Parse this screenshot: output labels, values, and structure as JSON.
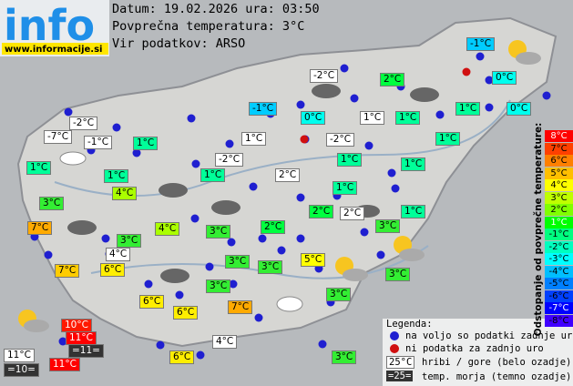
{
  "logo": {
    "text": "info",
    "url": "www.informacije.si"
  },
  "header": {
    "date": "Datum: 19.02.2026 ura: 03:50",
    "average": "Povprečna temperatura: 3°C",
    "source": "Vir podatkov: ARSO"
  },
  "stations": [
    {
      "label": "-1°C",
      "color": "#00ccff"
    },
    {
      "label": "2°C",
      "color": "#00ff40"
    },
    {
      "label": "0°C",
      "color": "#00ffee"
    },
    {
      "label": "-2°C",
      "color": "#ffffff"
    },
    {
      "label": "-1°C",
      "color": "#00ccff"
    },
    {
      "label": "0°C",
      "color": "#00ffee"
    },
    {
      "label": "1°C",
      "color": "#ffffff"
    },
    {
      "label": "1°C",
      "color": "#00ff99"
    },
    {
      "label": "1°C",
      "color": "#00ff99"
    },
    {
      "label": "0°C",
      "color": "#00ffee"
    },
    {
      "label": "-2°C",
      "color": "#ffffff"
    },
    {
      "label": "-7°C",
      "color": "#ffffff"
    },
    {
      "label": "-1°C",
      "color": "#ffffff"
    },
    {
      "label": "1°C",
      "color": "#00ff99"
    },
    {
      "label": "1°C",
      "color": "#ffffff"
    },
    {
      "label": "-2°C",
      "color": "#ffffff"
    },
    {
      "label": "1°C",
      "color": "#00ff99"
    },
    {
      "label": "1°C",
      "color": "#00ff99"
    },
    {
      "label": "1°C",
      "color": "#00ff99"
    },
    {
      "label": "-2°C",
      "color": "#ffffff"
    },
    {
      "label": "1°C",
      "color": "#00ff99"
    },
    {
      "label": "1°C",
      "color": "#00ff99"
    },
    {
      "label": "1°C",
      "color": "#00ff99"
    },
    {
      "label": "2°C",
      "color": "#ffffff"
    },
    {
      "label": "1°C",
      "color": "#00ff99"
    },
    {
      "label": "3°C",
      "color": "#33ee33"
    },
    {
      "label": "4°C",
      "color": "#aaff00"
    },
    {
      "label": "2°C",
      "color": "#00ff40"
    },
    {
      "label": "2°C",
      "color": "#ffffff"
    },
    {
      "label": "1°C",
      "color": "#00ff99"
    },
    {
      "label": "7°C",
      "color": "#ffaa00"
    },
    {
      "label": "4°C",
      "color": "#aaff00"
    },
    {
      "label": "3°C",
      "color": "#33ee33"
    },
    {
      "label": "2°C",
      "color": "#00ff40"
    },
    {
      "label": "3°C",
      "color": "#33ee33"
    },
    {
      "label": "3°C",
      "color": "#33ee33"
    },
    {
      "label": "4°C",
      "color": "#ffffff"
    },
    {
      "label": "3°C",
      "color": "#33ee33"
    },
    {
      "label": "3°C",
      "color": "#33ee33"
    },
    {
      "label": "5°C",
      "color": "#ffff00"
    },
    {
      "label": "7°C",
      "color": "#ffcc00"
    },
    {
      "label": "6°C",
      "color": "#ffee00"
    },
    {
      "label": "3°C",
      "color": "#33ee33"
    },
    {
      "label": "3°C",
      "color": "#33ee33"
    },
    {
      "label": "3°C",
      "color": "#33ee33"
    },
    {
      "label": "6°C",
      "color": "#ffee00"
    },
    {
      "label": "6°C",
      "color": "#ffee00"
    },
    {
      "label": "7°C",
      "color": "#ffaa00"
    },
    {
      "label": "10°C",
      "color": "#ff1a00"
    },
    {
      "label": "11°C",
      "color": "#ff0000"
    },
    {
      "label": "11°C",
      "color": "#ffffff"
    },
    {
      "label": "=11=",
      "color": "#333333"
    },
    {
      "label": "11°C",
      "color": "#ff0000"
    },
    {
      "label": "=10=",
      "color": "#333333"
    },
    {
      "label": "4°C",
      "color": "#ffffff"
    },
    {
      "label": "6°C",
      "color": "#ffee00"
    },
    {
      "label": "3°C",
      "color": "#33ee33"
    }
  ],
  "scale": {
    "title": "Odstopanje od povprečne temperature:",
    "items": [
      {
        "label": "8°C",
        "color": "#ff0000"
      },
      {
        "label": "7°C",
        "color": "#ff4000"
      },
      {
        "label": "6°C",
        "color": "#ff8000"
      },
      {
        "label": "5°C",
        "color": "#ffbf00"
      },
      {
        "label": "4°C",
        "color": "#ffff00"
      },
      {
        "label": "3°C",
        "color": "#bfff00"
      },
      {
        "label": "2°C",
        "color": "#80ff00"
      },
      {
        "label": "1°C",
        "color": "#00ff00"
      },
      {
        "label": "-1°C",
        "color": "#00ff80"
      },
      {
        "label": "-2°C",
        "color": "#00ffbf"
      },
      {
        "label": "-3°C",
        "color": "#00ffff"
      },
      {
        "label": "-4°C",
        "color": "#00bfff"
      },
      {
        "label": "-5°C",
        "color": "#0080ff"
      },
      {
        "label": "-6°C",
        "color": "#0040ff"
      },
      {
        "label": "-7°C",
        "color": "#0000ff"
      },
      {
        "label": "-8°C",
        "color": "#4000ff"
      }
    ]
  },
  "legend": {
    "title": "Legenda:",
    "available": "na voljo so podatki zadnje ure",
    "missing": "ni podatka za zadnjo uro",
    "hill_sample": "25°C",
    "hill_text": "hribi / gore (belo ozadje)",
    "sea_sample": "=25=",
    "sea_text": "temp. morja (temno ozadje)"
  }
}
